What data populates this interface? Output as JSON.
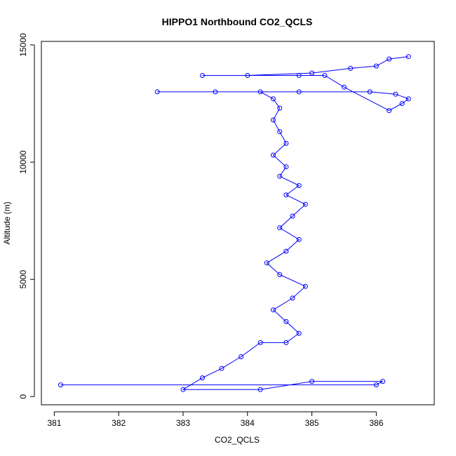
{
  "chart_data": {
    "type": "scatter",
    "title": "HIPPO1 Northbound CO2_QCLS",
    "xlabel": "CO2_QCLS",
    "ylabel": "Altitude (m)",
    "xlim": [
      380.8,
      386.9
    ],
    "ylim": [
      -350,
      15150
    ],
    "xticks": [
      381,
      382,
      383,
      384,
      385,
      386
    ],
    "yticks": [
      0,
      5000,
      10000,
      15000
    ],
    "grid": false,
    "series": [
      {
        "color": "#0000ff",
        "marker": "open-circle",
        "line": true,
        "points": [
          [
            381.1,
            500
          ],
          [
            386.0,
            500
          ],
          [
            386.1,
            650
          ],
          [
            385.0,
            650
          ],
          [
            384.2,
            300
          ],
          [
            383.0,
            300
          ],
          [
            383.3,
            800
          ],
          [
            383.6,
            1200
          ],
          [
            383.9,
            1700
          ],
          [
            384.2,
            2300
          ],
          [
            384.6,
            2300
          ],
          [
            384.8,
            2700
          ],
          [
            384.6,
            3200
          ],
          [
            384.4,
            3700
          ],
          [
            384.7,
            4200
          ],
          [
            384.9,
            4700
          ],
          [
            384.5,
            5200
          ],
          [
            384.3,
            5700
          ],
          [
            384.6,
            6200
          ],
          [
            384.8,
            6700
          ],
          [
            384.5,
            7200
          ],
          [
            384.7,
            7700
          ],
          [
            384.9,
            8200
          ],
          [
            384.6,
            8600
          ],
          [
            384.8,
            9000
          ],
          [
            384.5,
            9400
          ],
          [
            384.6,
            9800
          ],
          [
            384.4,
            10300
          ],
          [
            384.6,
            10800
          ],
          [
            384.5,
            11300
          ],
          [
            384.4,
            11800
          ],
          [
            384.5,
            12300
          ],
          [
            384.4,
            12700
          ],
          [
            384.2,
            13000
          ],
          [
            382.6,
            13000
          ],
          [
            383.5,
            13000
          ],
          [
            384.8,
            13000
          ],
          [
            385.9,
            13000
          ],
          [
            386.3,
            12900
          ],
          [
            386.5,
            12700
          ],
          [
            386.4,
            12500
          ],
          [
            386.2,
            12200
          ],
          [
            385.5,
            13200
          ],
          [
            385.2,
            13700
          ],
          [
            384.8,
            13700
          ],
          [
            383.3,
            13700
          ],
          [
            384.0,
            13700
          ],
          [
            385.0,
            13800
          ],
          [
            385.6,
            14000
          ],
          [
            386.0,
            14100
          ],
          [
            386.2,
            14400
          ],
          [
            386.5,
            14500
          ]
        ]
      }
    ]
  }
}
